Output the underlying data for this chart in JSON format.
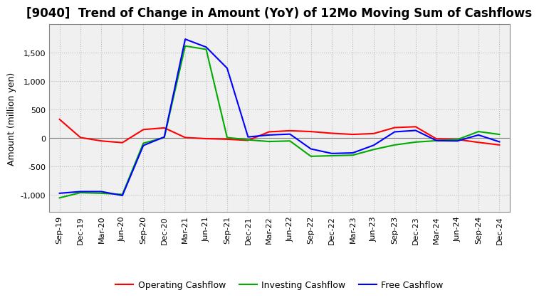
{
  "title": "[9040]  Trend of Change in Amount (YoY) of 12Mo Moving Sum of Cashflows",
  "ylabel": "Amount (million yen)",
  "xlabels": [
    "Sep-19",
    "Dec-19",
    "Mar-20",
    "Jun-20",
    "Sep-20",
    "Dec-20",
    "Mar-21",
    "Jun-21",
    "Sep-21",
    "Dec-21",
    "Mar-22",
    "Jun-22",
    "Sep-22",
    "Dec-22",
    "Mar-23",
    "Jun-23",
    "Sep-23",
    "Dec-23",
    "Mar-24",
    "Jun-24",
    "Sep-24",
    "Dec-24"
  ],
  "operating": [
    330,
    10,
    -50,
    -80,
    150,
    180,
    10,
    -10,
    -20,
    -40,
    110,
    130,
    115,
    85,
    65,
    80,
    185,
    200,
    -15,
    -25,
    -75,
    -120
  ],
  "investing": [
    -1050,
    -960,
    -970,
    -990,
    -90,
    10,
    1620,
    1560,
    10,
    -30,
    -60,
    -50,
    -320,
    -310,
    -300,
    -200,
    -120,
    -70,
    -45,
    -25,
    115,
    65
  ],
  "free": [
    -970,
    -940,
    -940,
    -1010,
    -130,
    20,
    1740,
    1600,
    1230,
    20,
    55,
    70,
    -190,
    -270,
    -260,
    -125,
    110,
    135,
    -45,
    -50,
    55,
    -65
  ],
  "operating_color": "#ff0000",
  "investing_color": "#00aa00",
  "free_color": "#0000ff",
  "ylim": [
    -1300,
    2000
  ],
  "yticks": [
    -1000,
    -500,
    0,
    500,
    1000,
    1500
  ],
  "background_color": "#ffffff",
  "plot_bg_color": "#f0f0f0",
  "grid_color": "#bbbbbb",
  "title_fontsize": 12,
  "axis_fontsize": 9,
  "tick_fontsize": 8,
  "legend_fontsize": 9
}
